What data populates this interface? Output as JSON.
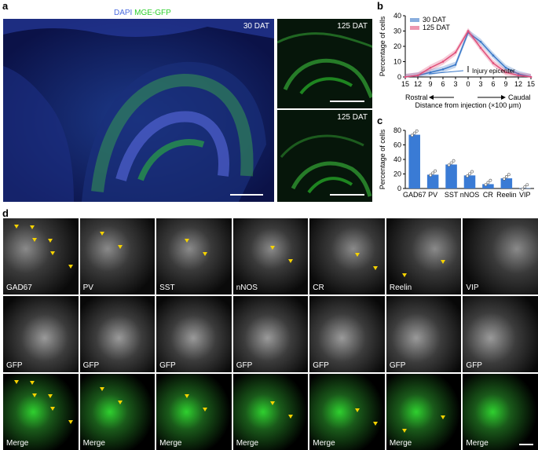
{
  "panel_a": {
    "letter": "a",
    "stain_dapi": "DAPI",
    "stain_gfp": "MGE-GFP",
    "main_label": "30 DAT",
    "inset_top_label": "125 DAT",
    "inset_bottom_label": "125 DAT"
  },
  "panel_b": {
    "letter": "b",
    "annotation": "Injury epicenter",
    "direction_left": "Rostral",
    "direction_right": "Caudal"
  },
  "panel_c": {
    "letter": "c"
  },
  "panel_d": {
    "letter": "d",
    "row1_labels": [
      "GAD67",
      "PV",
      "SST",
      "nNOS",
      "CR",
      "Reelin",
      "VIP"
    ],
    "row2_labels": [
      "GFP",
      "GFP",
      "GFP",
      "GFP",
      "GFP",
      "GFP",
      "GFP"
    ],
    "row3_labels": [
      "Merge",
      "Merge",
      "Merge",
      "Merge",
      "Merge",
      "Merge",
      "Merge"
    ]
  },
  "colors": {
    "dapi": "#3050d0",
    "gfp": "#2fd02f",
    "series_30": "#3a78c8",
    "series_125": "#e0507a",
    "bar": "#3a7bd5",
    "arrowhead": "#f5d200",
    "merge_magenta": "#c020c0"
  },
  "chart_data": [
    {
      "type": "line",
      "xlabel": "Distance from injection (×100 μm)",
      "ylabel": "Percentage of cells",
      "x_tick_labels": [
        "15",
        "12",
        "9",
        "6",
        "3",
        "0",
        "3",
        "6",
        "9",
        "12",
        "15"
      ],
      "x": [
        -15,
        -12,
        -9,
        -6,
        -3,
        0,
        3,
        6,
        9,
        12,
        15
      ],
      "ylim": [
        0,
        40
      ],
      "y_ticks": [
        0,
        10,
        20,
        30,
        40
      ],
      "legend_position": "top-left",
      "series": [
        {
          "name": "30 DAT",
          "values": [
            0,
            1,
            3,
            5,
            8,
            29,
            23,
            14,
            6,
            2,
            0
          ]
        },
        {
          "name": "125 DAT",
          "values": [
            0,
            1,
            6,
            10,
            16,
            30,
            19,
            9,
            3,
            1,
            0
          ]
        }
      ]
    },
    {
      "type": "bar",
      "ylabel": "Percentage of cells",
      "categories": [
        "GAD67",
        "PV",
        "SST",
        "nNOS",
        "CR",
        "Reelin",
        "VIP"
      ],
      "values": [
        74,
        19,
        33,
        18,
        6,
        14,
        0
      ],
      "ylim": [
        0,
        80
      ],
      "y_ticks": [
        0,
        20,
        40,
        60,
        80
      ]
    }
  ]
}
